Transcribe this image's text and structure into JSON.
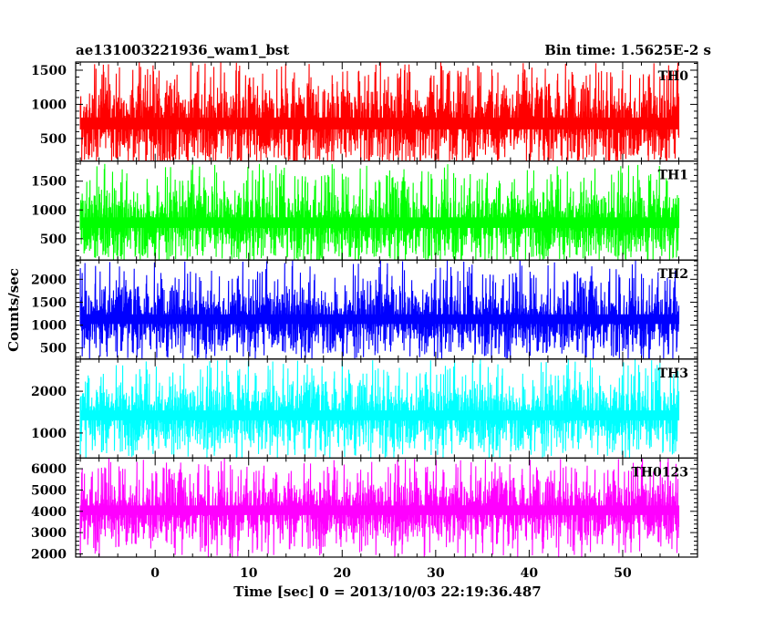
{
  "chart_data": {
    "type": "line",
    "title_left": "ae131003221936_wam1_bst",
    "title_right": "Bin time: 1.5625E-2 s",
    "xlabel": "Time [sec] 0 = 2013/10/03 22:19:36.487",
    "ylabel": "Counts/sec",
    "xlim": [
      -8.5,
      58
    ],
    "x_ticks": [
      0,
      10,
      20,
      30,
      40,
      50
    ],
    "x_minor_step": 2,
    "data_x_range": [
      -8,
      56
    ],
    "panels": [
      {
        "name": "TH0",
        "color": "#ff0000",
        "ylim": [
          170,
          1620
        ],
        "y_ticks": [
          500,
          1000,
          1500
        ],
        "y_minor_step": 100,
        "envelope": {
          "mean": 720,
          "lower": 160,
          "upper": 1620,
          "typical_high": 1350,
          "typical_low": 270
        }
      },
      {
        "name": "TH1",
        "color": "#00ff00",
        "ylim": [
          130,
          1850
        ],
        "y_ticks": [
          500,
          1000,
          1500
        ],
        "y_minor_step": 100,
        "envelope": {
          "mean": 780,
          "lower": 130,
          "upper": 1800,
          "typical_high": 1450,
          "typical_low": 220
        }
      },
      {
        "name": "TH2",
        "color": "#0000ff",
        "ylim": [
          260,
          2420
        ],
        "y_ticks": [
          500,
          1000,
          1500,
          2000
        ],
        "y_minor_step": 100,
        "envelope": {
          "mean": 1130,
          "lower": 260,
          "upper": 2420,
          "typical_high": 1900,
          "typical_low": 450
        }
      },
      {
        "name": "TH3",
        "color": "#00ffff",
        "ylim": [
          400,
          2770
        ],
        "y_ticks": [
          1000,
          2000
        ],
        "y_minor_step": 100,
        "envelope": {
          "mean": 1420,
          "lower": 400,
          "upper": 2770,
          "typical_high": 2300,
          "typical_low": 650
        }
      },
      {
        "name": "TH0123",
        "color": "#ff00ff",
        "ylim": [
          1850,
          6500
        ],
        "y_ticks": [
          2000,
          3000,
          4000,
          5000,
          6000
        ],
        "y_minor_step": 200,
        "envelope": {
          "mean": 4050,
          "lower": 1850,
          "upper": 6500,
          "typical_high": 5700,
          "typical_low": 2500
        }
      }
    ]
  }
}
